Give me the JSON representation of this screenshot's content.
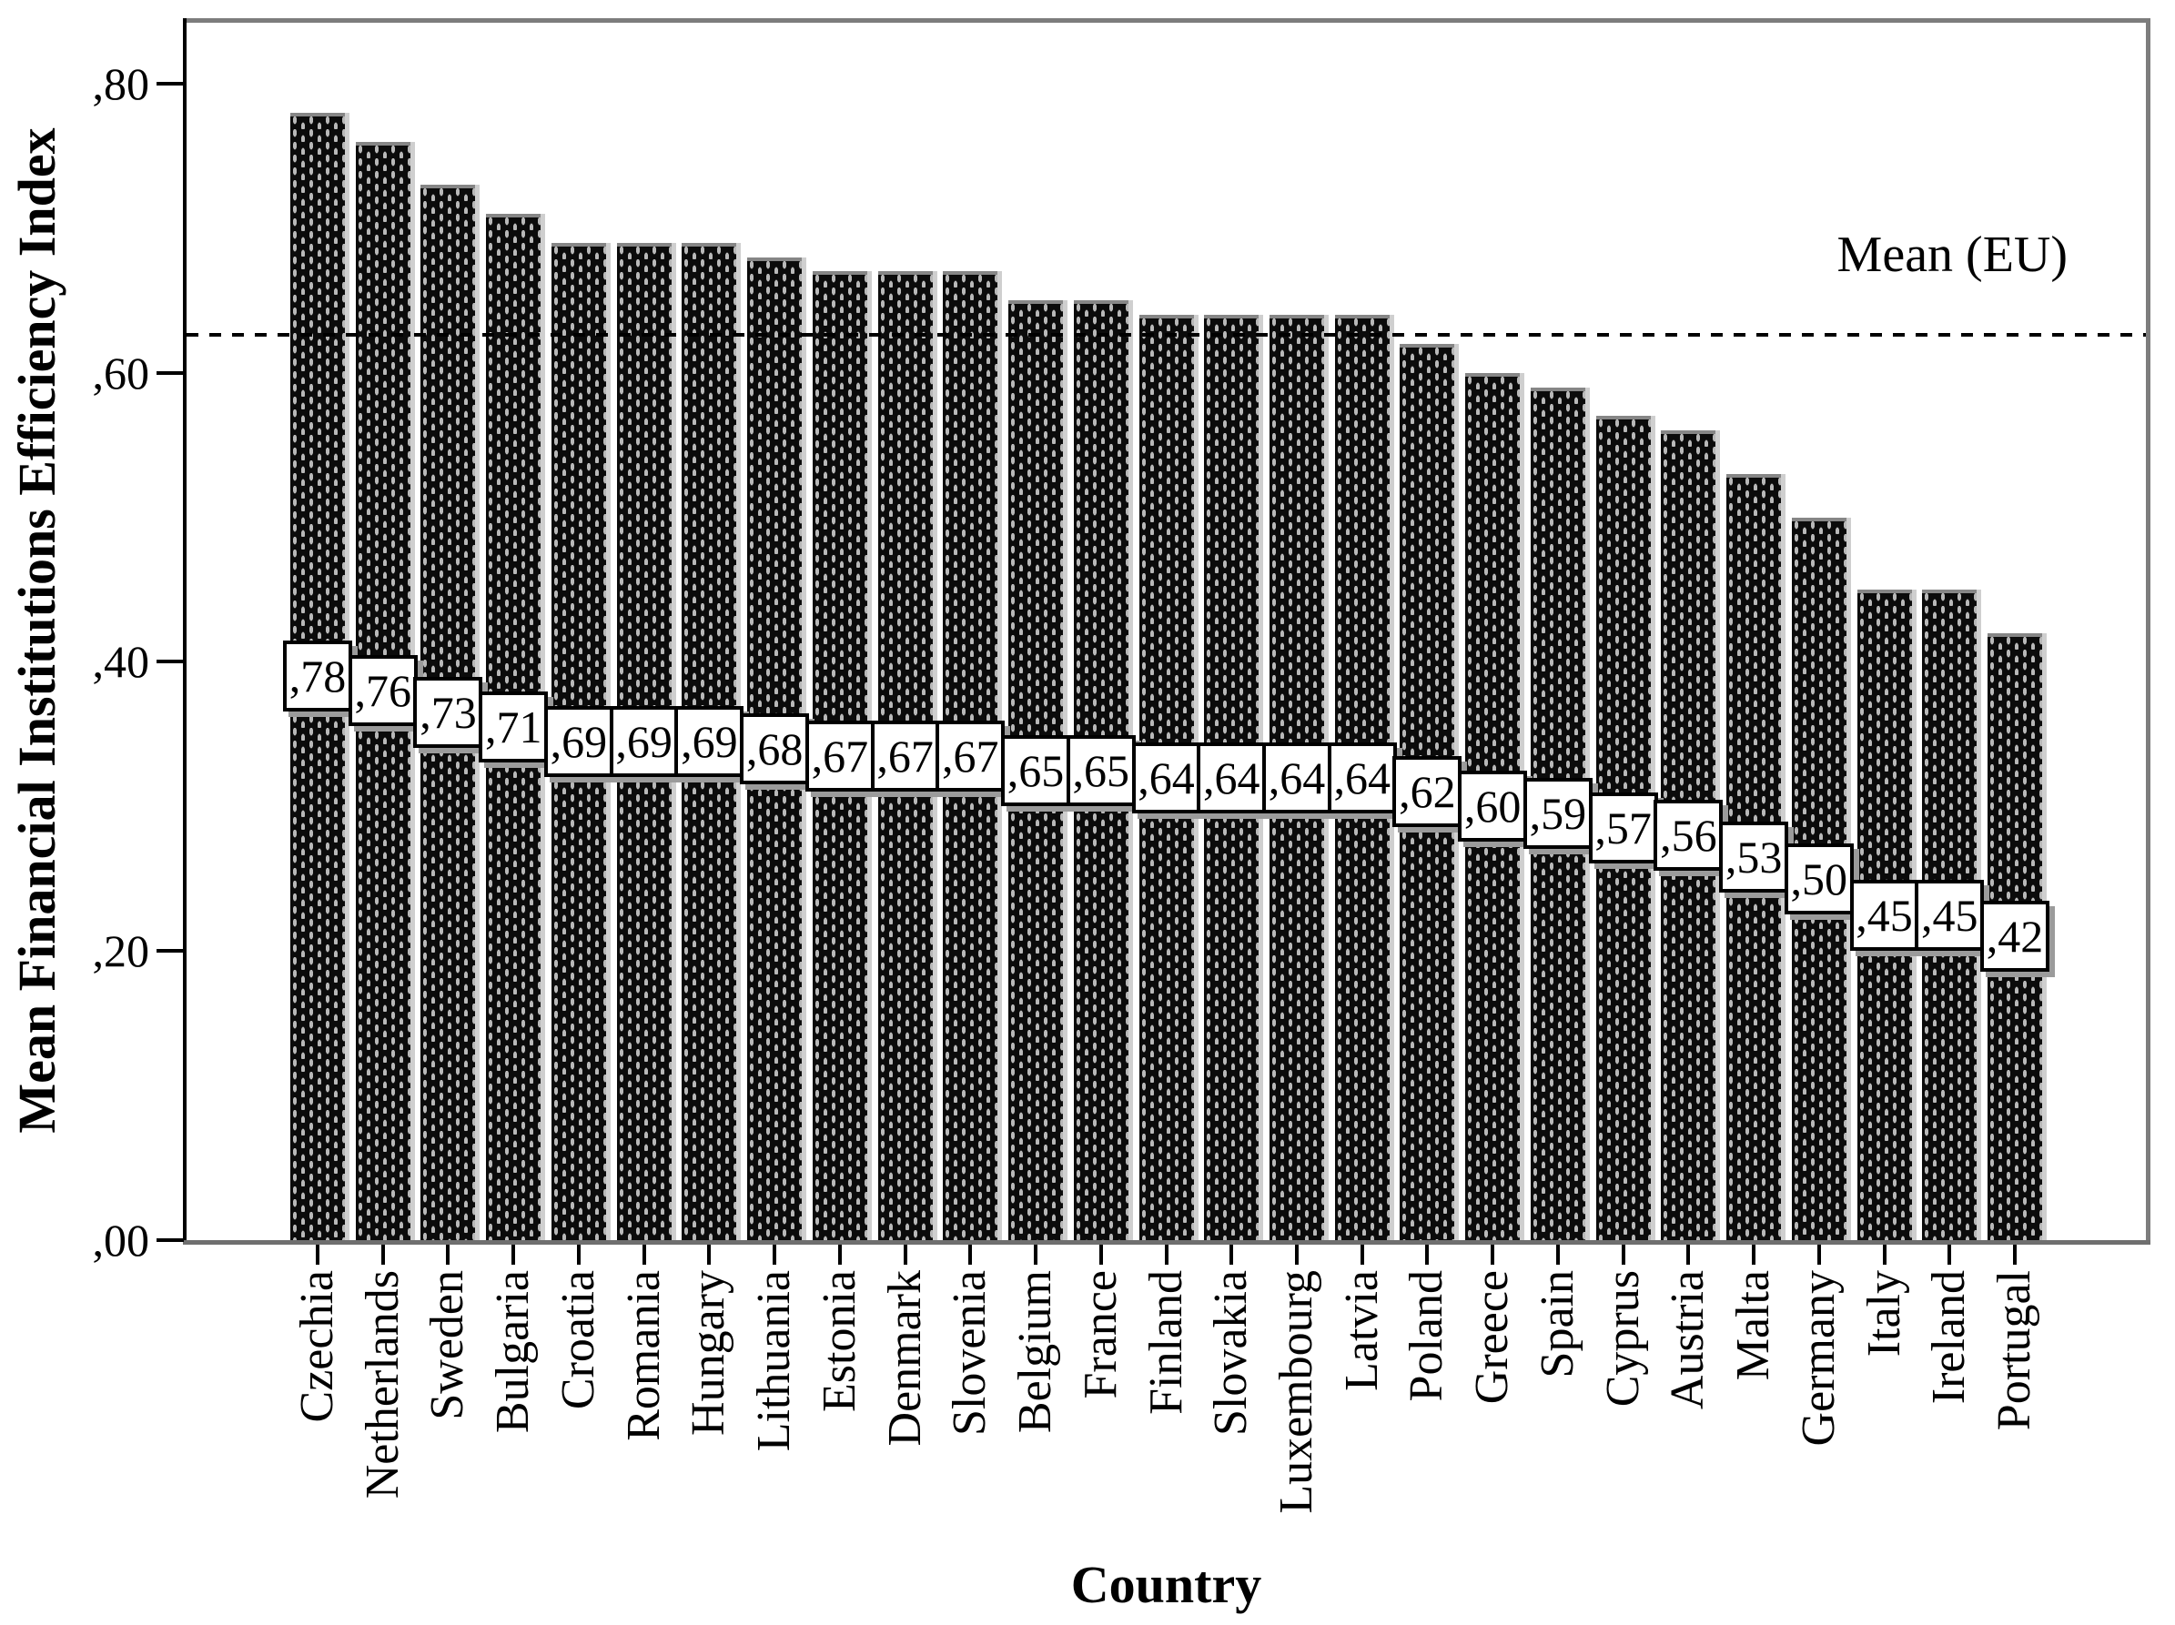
{
  "chart_data": {
    "type": "bar",
    "title": "",
    "xlabel": "Country",
    "ylabel": "Mean Financial Institutions Efficiency Index",
    "categories": [
      "Czechia",
      "Netherlands",
      "Sweden",
      "Bulgaria",
      "Croatia",
      "Romania",
      "Hungary",
      "Lithuania",
      "Estonia",
      "Denmark",
      "Slovenia",
      "Belgium",
      "France",
      "Finland",
      "Slovakia",
      "Luxembourg",
      "Latvia",
      "Poland",
      "Greece",
      "Spain",
      "Cyprus",
      "Austria",
      "Malta",
      "Germany",
      "Italy",
      "Ireland",
      "Portugal"
    ],
    "values": [
      0.78,
      0.76,
      0.73,
      0.71,
      0.69,
      0.69,
      0.69,
      0.68,
      0.67,
      0.67,
      0.67,
      0.65,
      0.65,
      0.64,
      0.64,
      0.64,
      0.64,
      0.62,
      0.6,
      0.59,
      0.57,
      0.56,
      0.53,
      0.5,
      0.45,
      0.45,
      0.42
    ],
    "value_labels": [
      ",78",
      ",76",
      ",73",
      ",71",
      ",69",
      ",69",
      ",69",
      ",68",
      ",67",
      ",67",
      ",67",
      ",65",
      ",65",
      ",64",
      ",64",
      ",64",
      ",64",
      ",62",
      ",60",
      ",59",
      ",57",
      ",56",
      ",53",
      ",50",
      ",45",
      ",45",
      ",42"
    ],
    "y_tick_values": [
      0.0,
      0.2,
      0.4,
      0.6,
      0.8
    ],
    "y_tick_labels": [
      ",00",
      ",20",
      ",40",
      ",60",
      ",80"
    ],
    "ylim": [
      0,
      0.8434
    ],
    "grid": false,
    "legend": "none",
    "mean": {
      "value": 0.626,
      "label": "Mean (EU)"
    },
    "colors": {
      "bar_fill": "#0b0b0b",
      "bar_dot": "#b8b8b8",
      "frame_gray": "#7d7d7d",
      "axis_black": "#000000",
      "label_box_bg": "#ffffff",
      "label_box_shadow": "#9b9b9b"
    }
  }
}
